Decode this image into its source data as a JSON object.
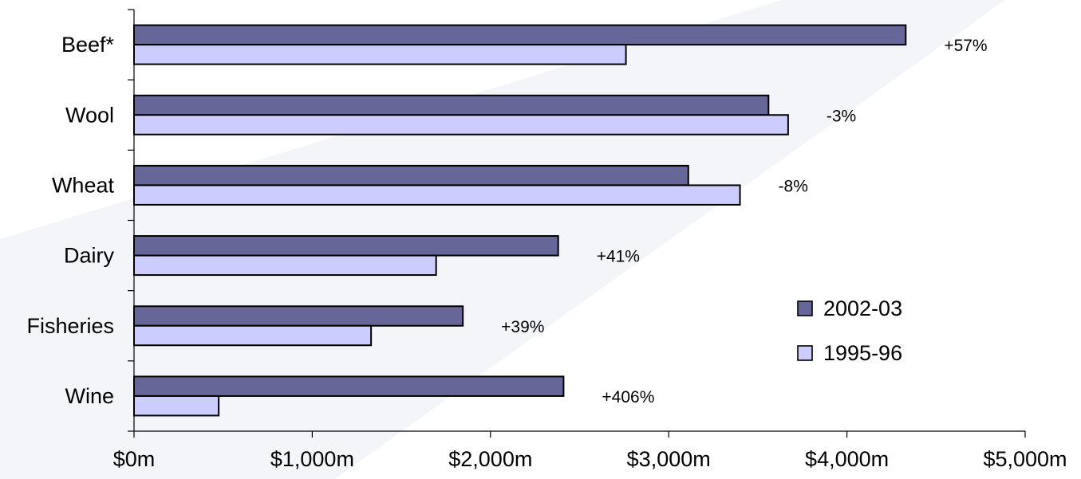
{
  "chart_data": {
    "type": "bar",
    "orientation": "horizontal",
    "categories": [
      "Beef*",
      "Wool",
      "Wheat",
      "Dairy",
      "Fisheries",
      "Wine"
    ],
    "series": [
      {
        "name": "2002-03",
        "values": [
          4330,
          3560,
          3110,
          2380,
          1845,
          2410
        ]
      },
      {
        "name": "1995-96",
        "values": [
          2760,
          3670,
          3400,
          1695,
          1330,
          475
        ]
      }
    ],
    "data_labels": [
      "+57%",
      "-3%",
      "-8%",
      "+41%",
      "+39%",
      "+406%"
    ],
    "x_ticks": [
      "$0m",
      "$1,000m",
      "$2,000m",
      "$3,000m",
      "$4,000m",
      "$5,000m"
    ],
    "xlim": [
      0,
      5000
    ],
    "title": "",
    "xlabel": "",
    "ylabel": "",
    "grid": false,
    "legend": "right",
    "colors": {
      "2002-03": "#666699",
      "1995-96": "#ccccff"
    }
  }
}
